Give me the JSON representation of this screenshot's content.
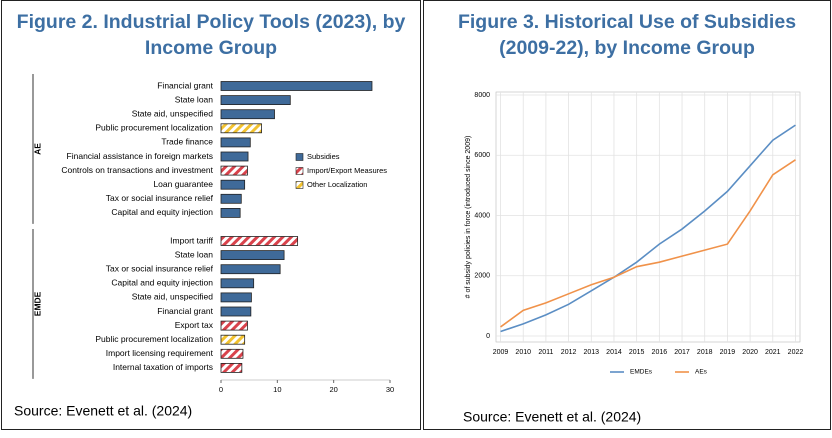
{
  "chart_data": [
    {
      "type": "bar",
      "orientation": "horizontal",
      "title": "Figure 2. Industrial Policy Tools (2023), by Income Group",
      "source": "Source: Evenett et al. (2024)",
      "groups": [
        {
          "label": "AE",
          "categories": [
            "Financial grant",
            "State loan",
            "State aid, unspecified",
            "Public procurement localization",
            "Trade finance",
            "Financial assistance in foreign markets",
            "Controls on transactions and investment",
            "Loan guarantee",
            "Tax or social insurance relief",
            "Capital and equity injection"
          ]
        },
        {
          "label": "EMDE",
          "categories": [
            "Import tariff",
            "State loan",
            "Tax or social insurance relief",
            "Capital and equity injection",
            "State aid, unspecified",
            "Financial grant",
            "Export tax",
            "Public procurement localization",
            "Import licensing requirement",
            "Internal taxation of imports"
          ]
        }
      ],
      "series": [
        {
          "name": "Subsidies",
          "color": "#3f6a99",
          "hatch": false,
          "values": [
            26.8,
            12.3,
            9.5,
            null,
            5.2,
            4.8,
            null,
            4.2,
            3.6,
            3.4,
            null,
            11.2,
            10.5,
            5.8,
            5.4,
            5.3,
            null,
            null,
            null,
            null
          ]
        },
        {
          "name": "Import/Export Measures",
          "color": "#d9434c",
          "hatch": true,
          "values": [
            null,
            null,
            null,
            null,
            null,
            null,
            4.7,
            null,
            null,
            null,
            13.6,
            null,
            null,
            null,
            null,
            null,
            4.7,
            null,
            3.9,
            3.7
          ]
        },
        {
          "name": "Other Localization",
          "color": "#f2c230",
          "hatch": true,
          "values": [
            null,
            null,
            null,
            7.2,
            null,
            null,
            null,
            null,
            null,
            null,
            null,
            null,
            null,
            null,
            null,
            null,
            null,
            4.2,
            null,
            null
          ]
        }
      ],
      "xlim": [
        0,
        30
      ],
      "xticks": [
        0,
        10,
        20,
        30
      ]
    },
    {
      "type": "line",
      "title": "Figure 3. Historical Use of Subsidies (2009-22), by Income Group",
      "source": "Source: Evenett et al. (2024)",
      "y_label": "# of subsidy policies in force (introduced since 2009)",
      "x": [
        2009,
        2010,
        2011,
        2012,
        2013,
        2014,
        2015,
        2016,
        2017,
        2018,
        2019,
        2020,
        2021,
        2022
      ],
      "series": [
        {
          "name": "EMDEs",
          "color": "#5b8ec4",
          "values": [
            150,
            400,
            700,
            1050,
            1500,
            1950,
            2450,
            3050,
            3550,
            4150,
            4800,
            5650,
            6500,
            7000
          ]
        },
        {
          "name": "AEs",
          "color": "#f0924a",
          "values": [
            300,
            850,
            1100,
            1400,
            1700,
            1950,
            2300,
            2450,
            2650,
            2850,
            3050,
            4150,
            5350,
            5850
          ]
        }
      ],
      "xlim": [
        2008.8,
        2022.2
      ],
      "xticks": [
        2009,
        2010,
        2011,
        2012,
        2013,
        2014,
        2015,
        2016,
        2017,
        2018,
        2019,
        2020,
        2021,
        2022
      ],
      "ylim": [
        -200,
        8100
      ],
      "yticks": [
        0,
        2000,
        4000,
        6000,
        8000
      ],
      "grid": true
    }
  ]
}
